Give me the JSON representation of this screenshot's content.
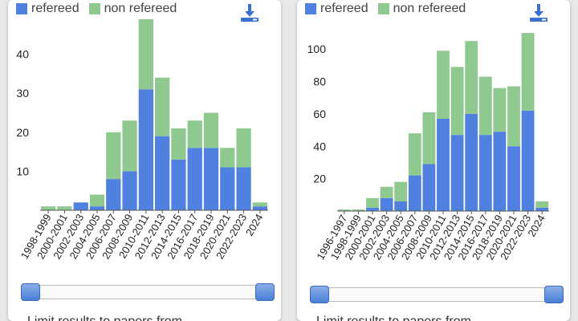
{
  "colors": {
    "refereed": "#5080e0",
    "non_refereed": "#8fc98f"
  },
  "legend": {
    "refereed": "refereed",
    "non_refereed": "non refereed"
  },
  "download_icon": "download-icon",
  "footer": {
    "left_text": "Limit results to papers from",
    "right_text": "Limit results to papers from"
  },
  "chart_data": [
    {
      "type": "bar",
      "stacked": true,
      "categories": [
        "1998-1999",
        "2000-2001",
        "2002-2003",
        "2004-2005",
        "2006-2007",
        "2008-2009",
        "2010-2011",
        "2012-2013",
        "2014-2015",
        "2016-2017",
        "2018-2019",
        "2020-2021",
        "2022-2023",
        "2024"
      ],
      "series": [
        {
          "name": "refereed",
          "values": [
            0,
            0,
            2,
            1,
            8,
            10,
            31,
            19,
            13,
            16,
            16,
            11,
            11,
            1
          ]
        },
        {
          "name": "non refereed",
          "values": [
            1,
            1,
            0,
            3,
            12,
            13,
            18,
            15,
            8,
            7,
            9,
            5,
            10,
            1
          ]
        }
      ],
      "yticks": [
        10,
        20,
        30,
        40
      ],
      "ylim": [
        0,
        50
      ],
      "grid": false,
      "legend_position": "top-left"
    },
    {
      "type": "bar",
      "stacked": true,
      "categories": [
        "1996-1997",
        "1998-1999",
        "2000-2001",
        "2002-2003",
        "2004-2005",
        "2006-2007",
        "2008-2009",
        "2010-2011",
        "2012-2013",
        "2014-2015",
        "2016-2017",
        "2018-2019",
        "2020-2021",
        "2022-2023",
        "2024"
      ],
      "series": [
        {
          "name": "refereed",
          "values": [
            0,
            0,
            2,
            8,
            6,
            22,
            29,
            57,
            47,
            60,
            47,
            49,
            40,
            62,
            2
          ]
        },
        {
          "name": "non refereed",
          "values": [
            1,
            1,
            6,
            7,
            12,
            26,
            32,
            42,
            42,
            45,
            36,
            27,
            37,
            48,
            4
          ]
        }
      ],
      "yticks": [
        20,
        40,
        60,
        80,
        100
      ],
      "ylim": [
        0,
        113
      ],
      "grid": false,
      "legend_position": "top-left"
    }
  ]
}
